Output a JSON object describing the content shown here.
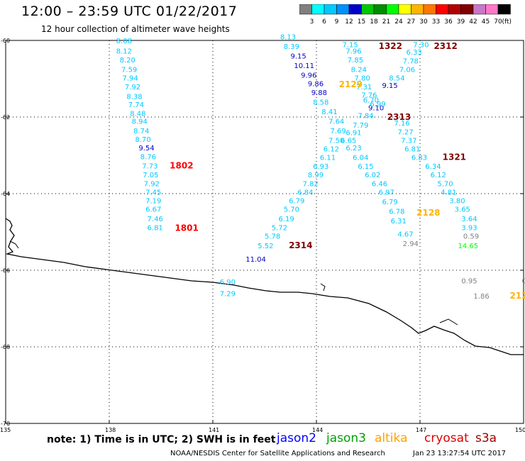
{
  "title": "12:00 – 23:59 UTC 01/22/2017",
  "subtitle": "12 hour collection of altimeter wave heights",
  "colorbar": {
    "unit": "(ft)",
    "levels": [
      "3",
      "6",
      "9",
      "12",
      "15",
      "18",
      "21",
      "24",
      "27",
      "30",
      "33",
      "36",
      "39",
      "42",
      "45",
      "70"
    ],
    "colors": [
      "#808080",
      "#00ffff",
      "#00c8ff",
      "#0090ff",
      "#0000c8",
      "#00c800",
      "#008c00",
      "#00ff00",
      "#ffff00",
      "#ffb400",
      "#ff7800",
      "#ff0000",
      "#b40000",
      "#800000",
      "#c878c8",
      "#ff78c8",
      "#000000"
    ]
  },
  "axes": {
    "lat_labels": [
      "-60",
      "-62",
      "-64",
      "-66",
      "-68",
      "-70"
    ],
    "lon_labels": [
      "135",
      "138",
      "141",
      "144",
      "147",
      "150"
    ]
  },
  "observations": [
    {
      "lat": -60.0,
      "lon": 138.2,
      "v": "8.08",
      "c": "#00c8ff"
    },
    {
      "lat": -60.27,
      "lon": 138.2,
      "v": "8.12",
      "c": "#00c8ff"
    },
    {
      "lat": -60.5,
      "lon": 138.3,
      "v": "8.20",
      "c": "#00c8ff"
    },
    {
      "lat": -60.75,
      "lon": 138.35,
      "v": "7.59",
      "c": "#00c8ff"
    },
    {
      "lat": -60.97,
      "lon": 138.38,
      "v": "7.94",
      "c": "#00c8ff"
    },
    {
      "lat": -61.2,
      "lon": 138.45,
      "v": "7.92",
      "c": "#00c8ff"
    },
    {
      "lat": -61.45,
      "lon": 138.5,
      "v": "8.38",
      "c": "#00c8ff"
    },
    {
      "lat": -61.67,
      "lon": 138.55,
      "v": "7.74",
      "c": "#00c8ff"
    },
    {
      "lat": -61.9,
      "lon": 138.6,
      "v": "8.48",
      "c": "#00c8ff"
    },
    {
      "lat": -62.1,
      "lon": 138.65,
      "v": "8.94",
      "c": "#00c8ff"
    },
    {
      "lat": -62.35,
      "lon": 138.7,
      "v": "8.74",
      "c": "#00c8ff"
    },
    {
      "lat": -62.57,
      "lon": 138.75,
      "v": "8.70",
      "c": "#00c8ff"
    },
    {
      "lat": -62.8,
      "lon": 138.85,
      "v": "9.54",
      "c": "#0000c8"
    },
    {
      "lat": -63.03,
      "lon": 138.9,
      "v": "8.76",
      "c": "#00c8ff"
    },
    {
      "lat": -63.27,
      "lon": 138.95,
      "v": "7.73",
      "c": "#00c8ff"
    },
    {
      "lat": -63.5,
      "lon": 138.97,
      "v": "7.05",
      "c": "#00c8ff"
    },
    {
      "lat": -63.73,
      "lon": 139.0,
      "v": "7.92",
      "c": "#00c8ff"
    },
    {
      "lat": -63.95,
      "lon": 139.05,
      "v": "7.45",
      "c": "#00c8ff"
    },
    {
      "lat": -64.18,
      "lon": 139.05,
      "v": "7.19",
      "c": "#00c8ff"
    },
    {
      "lat": -64.4,
      "lon": 139.05,
      "v": "6.67",
      "c": "#00c8ff"
    },
    {
      "lat": -64.65,
      "lon": 139.1,
      "v": "7.46",
      "c": "#00c8ff"
    },
    {
      "lat": -64.88,
      "lon": 139.1,
      "v": "6.81",
      "c": "#00c8ff"
    },
    {
      "lat": -63.27,
      "lon": 139.75,
      "v": "1802",
      "c": "#ff0000",
      "bold": true
    },
    {
      "lat": -64.9,
      "lon": 139.9,
      "v": "1801",
      "c": "#ff0000",
      "bold": true
    },
    {
      "lat": -59.9,
      "lon": 142.95,
      "v": "8.13",
      "c": "#00c8ff"
    },
    {
      "lat": -60.15,
      "lon": 143.05,
      "v": "8.39",
      "c": "#00c8ff"
    },
    {
      "lat": -60.4,
      "lon": 143.25,
      "v": "9.15",
      "c": "#0000c8"
    },
    {
      "lat": -60.65,
      "lon": 143.35,
      "v": "10.11",
      "c": "#0000c8"
    },
    {
      "lat": -60.9,
      "lon": 143.55,
      "v": "9.96",
      "c": "#0000c8"
    },
    {
      "lat": -61.12,
      "lon": 143.75,
      "v": "9.86",
      "c": "#0000c8"
    },
    {
      "lat": -61.35,
      "lon": 143.85,
      "v": "9.88",
      "c": "#0000c8"
    },
    {
      "lat": -61.6,
      "lon": 143.9,
      "v": "8.58",
      "c": "#00c8ff"
    },
    {
      "lat": -61.85,
      "lon": 144.15,
      "v": "8.41",
      "c": "#00c8ff"
    },
    {
      "lat": -62.1,
      "lon": 144.35,
      "v": "7.64",
      "c": "#00c8ff"
    },
    {
      "lat": -62.35,
      "lon": 144.4,
      "v": "7.69",
      "c": "#00c8ff"
    },
    {
      "lat": -62.6,
      "lon": 144.35,
      "v": "7.50",
      "c": "#00c8ff"
    },
    {
      "lat": -62.82,
      "lon": 144.2,
      "v": "6.12",
      "c": "#00c8ff"
    },
    {
      "lat": -63.05,
      "lon": 144.1,
      "v": "6.11",
      "c": "#00c8ff"
    },
    {
      "lat": -63.28,
      "lon": 143.9,
      "v": "6.93",
      "c": "#00c8ff"
    },
    {
      "lat": -63.5,
      "lon": 143.75,
      "v": "8.99",
      "c": "#00c8ff"
    },
    {
      "lat": -63.73,
      "lon": 143.6,
      "v": "7.82",
      "c": "#00c8ff"
    },
    {
      "lat": -63.95,
      "lon": 143.45,
      "v": "6.84",
      "c": "#00c8ff"
    },
    {
      "lat": -64.18,
      "lon": 143.2,
      "v": "6.79",
      "c": "#00c8ff"
    },
    {
      "lat": -64.4,
      "lon": 143.05,
      "v": "5.70",
      "c": "#00c8ff"
    },
    {
      "lat": -64.65,
      "lon": 142.9,
      "v": "6.19",
      "c": "#00c8ff"
    },
    {
      "lat": -64.88,
      "lon": 142.7,
      "v": "5.72",
      "c": "#00c8ff"
    },
    {
      "lat": -65.1,
      "lon": 142.5,
      "v": "5.78",
      "c": "#00c8ff"
    },
    {
      "lat": -65.35,
      "lon": 142.3,
      "v": "5.52",
      "c": "#00c8ff"
    },
    {
      "lat": -65.7,
      "lon": 141.95,
      "v": "11.04",
      "c": "#0000c8"
    },
    {
      "lat": -65.35,
      "lon": 143.2,
      "v": "2314",
      "c": "#800000",
      "bold": true
    },
    {
      "lat": -60.1,
      "lon": 144.75,
      "v": "7.15",
      "c": "#00c8ff"
    },
    {
      "lat": -60.27,
      "lon": 144.85,
      "v": "7.96",
      "c": "#00c8ff"
    },
    {
      "lat": -60.5,
      "lon": 144.9,
      "v": "7.85",
      "c": "#00c8ff"
    },
    {
      "lat": -60.75,
      "lon": 145.0,
      "v": "8.24",
      "c": "#00c8ff"
    },
    {
      "lat": -60.97,
      "lon": 145.1,
      "v": "7.80",
      "c": "#00c8ff"
    },
    {
      "lat": -61.2,
      "lon": 145.15,
      "v": "7.31",
      "c": "#00c8ff"
    },
    {
      "lat": -61.42,
      "lon": 145.3,
      "v": "7.76",
      "c": "#00c8ff"
    },
    {
      "lat": -61.55,
      "lon": 145.35,
      "v": "6.70",
      "c": "#00c8ff"
    },
    {
      "lat": -61.75,
      "lon": 145.5,
      "v": "9.10",
      "c": "#0000c8"
    },
    {
      "lat": -61.65,
      "lon": 145.55,
      "v": "6.99",
      "c": "#00c8ff"
    },
    {
      "lat": -61.95,
      "lon": 145.2,
      "v": "7.84",
      "c": "#00c8ff"
    },
    {
      "lat": -62.2,
      "lon": 145.05,
      "v": "7.79",
      "c": "#00c8ff"
    },
    {
      "lat": -62.4,
      "lon": 144.85,
      "v": "6.91",
      "c": "#00c8ff"
    },
    {
      "lat": -62.6,
      "lon": 144.7,
      "v": "6.65",
      "c": "#00c8ff"
    },
    {
      "lat": -62.8,
      "lon": 144.85,
      "v": "6.23",
      "c": "#00c8ff"
    },
    {
      "lat": -63.05,
      "lon": 145.05,
      "v": "6.04",
      "c": "#00c8ff"
    },
    {
      "lat": -63.28,
      "lon": 145.2,
      "v": "6.15",
      "c": "#00c8ff"
    },
    {
      "lat": -63.5,
      "lon": 145.4,
      "v": "6.02",
      "c": "#00c8ff"
    },
    {
      "lat": -63.73,
      "lon": 145.6,
      "v": "6.46",
      "c": "#00c8ff"
    },
    {
      "lat": -63.95,
      "lon": 145.8,
      "v": "6.97",
      "c": "#00c8ff"
    },
    {
      "lat": -64.2,
      "lon": 145.9,
      "v": "6.79",
      "c": "#00c8ff"
    },
    {
      "lat": -64.45,
      "lon": 146.1,
      "v": "6.78",
      "c": "#00c8ff"
    },
    {
      "lat": -64.7,
      "lon": 146.15,
      "v": "6.31",
      "c": "#00c8ff"
    },
    {
      "lat": -65.05,
      "lon": 146.35,
      "v": "4.67",
      "c": "#00c8ff"
    },
    {
      "lat": -60.1,
      "lon": 146.8,
      "v": "7.30",
      "c": "#00c8ff"
    },
    {
      "lat": -60.3,
      "lon": 146.6,
      "v": "6.33",
      "c": "#00c8ff"
    },
    {
      "lat": -60.53,
      "lon": 146.5,
      "v": "7.78",
      "c": "#00c8ff"
    },
    {
      "lat": -60.75,
      "lon": 146.4,
      "v": "7.06",
      "c": "#00c8ff"
    },
    {
      "lat": -60.97,
      "lon": 146.1,
      "v": "8.54",
      "c": "#00c8ff"
    },
    {
      "lat": -61.17,
      "lon": 145.9,
      "v": "9.15",
      "c": "#0000c8"
    },
    {
      "lat": -62.15,
      "lon": 146.25,
      "v": "7.16",
      "c": "#00c8ff"
    },
    {
      "lat": -62.38,
      "lon": 146.35,
      "v": "7.27",
      "c": "#00c8ff"
    },
    {
      "lat": -62.6,
      "lon": 146.45,
      "v": "7.37",
      "c": "#00c8ff"
    },
    {
      "lat": -62.82,
      "lon": 146.55,
      "v": "6.81",
      "c": "#00c8ff"
    },
    {
      "lat": -63.05,
      "lon": 146.75,
      "v": "6.83",
      "c": "#00c8ff"
    },
    {
      "lat": -63.28,
      "lon": 147.15,
      "v": "6.34",
      "c": "#00c8ff"
    },
    {
      "lat": -63.5,
      "lon": 147.3,
      "v": "6.12",
      "c": "#00c8ff"
    },
    {
      "lat": -63.73,
      "lon": 147.5,
      "v": "5.70",
      "c": "#00c8ff"
    },
    {
      "lat": -63.95,
      "lon": 147.6,
      "v": "4.81",
      "c": "#00c8ff"
    },
    {
      "lat": -64.18,
      "lon": 147.85,
      "v": "3.80",
      "c": "#00c8ff"
    },
    {
      "lat": -64.4,
      "lon": 148.0,
      "v": "3.65",
      "c": "#00c8ff"
    },
    {
      "lat": -64.65,
      "lon": 148.2,
      "v": "3.64",
      "c": "#00c8ff"
    },
    {
      "lat": -64.88,
      "lon": 148.2,
      "v": "3.93",
      "c": "#00c8ff"
    },
    {
      "lat": -65.1,
      "lon": 148.25,
      "v": "0.59",
      "c": "#808080"
    },
    {
      "lat": -65.35,
      "lon": 148.1,
      "v": "14.65",
      "c": "#00ff00"
    },
    {
      "lat": -65.3,
      "lon": 146.5,
      "v": "2.94",
      "c": "#808080"
    },
    {
      "lat": -66.27,
      "lon": 148.2,
      "v": "0.95",
      "c": "#808080"
    },
    {
      "lat": -66.67,
      "lon": 148.55,
      "v": "1.86",
      "c": "#808080"
    },
    {
      "lat": -66.27,
      "lon": 149.95,
      "v": "0",
      "c": "#808080"
    },
    {
      "lat": -60.15,
      "lon": 145.8,
      "v": "1322",
      "c": "#800000",
      "bold": true
    },
    {
      "lat": -60.15,
      "lon": 147.4,
      "v": "2312",
      "c": "#800000",
      "bold": true
    },
    {
      "lat": -61.15,
      "lon": 144.65,
      "v": "2129",
      "c": "#ffb400",
      "bold": true
    },
    {
      "lat": -62.0,
      "lon": 146.05,
      "v": "2313",
      "c": "#800000",
      "bold": true
    },
    {
      "lat": -63.05,
      "lon": 147.65,
      "v": "1321",
      "c": "#800000",
      "bold": true
    },
    {
      "lat": -64.5,
      "lon": 146.9,
      "v": "2128",
      "c": "#ffb400",
      "bold": true
    },
    {
      "lat": -66.67,
      "lon": 149.6,
      "v": "212",
      "c": "#ffb400",
      "bold": true
    },
    {
      "lat": -66.3,
      "lon": 141.2,
      "v": "6.90",
      "c": "#00c8ff"
    },
    {
      "lat": -66.6,
      "lon": 141.2,
      "v": "7.29",
      "c": "#00c8ff"
    }
  ],
  "footer": {
    "note": "note:  1) Time is in UTC;  2) SWH is in feet",
    "satellites": [
      {
        "name": "jason2",
        "color": "#0000ff"
      },
      {
        "name": "jason3",
        "color": "#00a000"
      },
      {
        "name": "altika",
        "color": "#ffa000"
      },
      {
        "name": "cryosat",
        "color": "#e00000"
      },
      {
        "name": "s3a",
        "color": "#a00000"
      }
    ],
    "credit": "NOAA/NESDIS Center for Satellite Applications and Research",
    "timestamp": "Jan 23 13:27:54 UTC 2017"
  }
}
